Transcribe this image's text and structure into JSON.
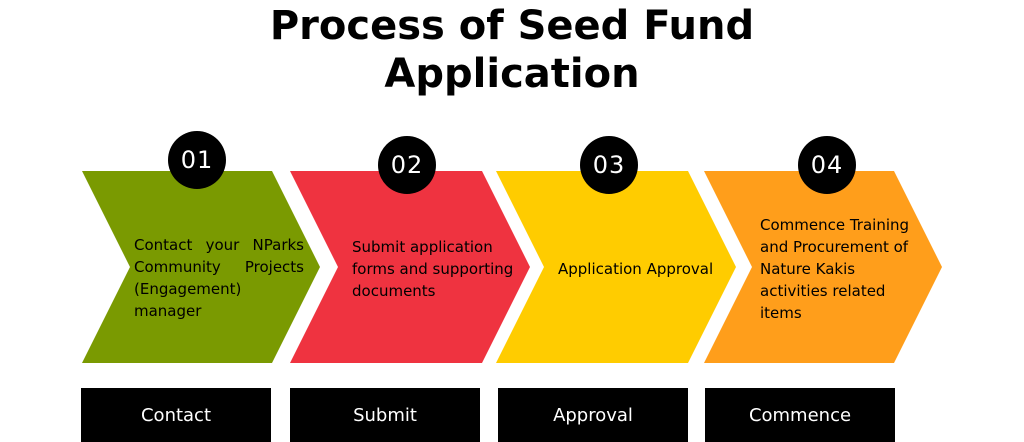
{
  "title_line1": "Process of Seed Fund",
  "title_line2": "Application",
  "steps": [
    {
      "number": "01",
      "description": "Contact your NParks Community Projects (Engagement) manager",
      "label": "Contact",
      "color": "#7a9a01"
    },
    {
      "number": "02",
      "description": "Submit application forms and supporting documents",
      "label": "Submit",
      "color": "#ef3340"
    },
    {
      "number": "03",
      "description": "Application Approval",
      "label": "Approval",
      "color": "#ffcc00"
    },
    {
      "number": "04",
      "description": "Commence Training and Procurement of Nature Kakis activities related items",
      "label": "Commence",
      "color": "#ff9e1b"
    }
  ]
}
